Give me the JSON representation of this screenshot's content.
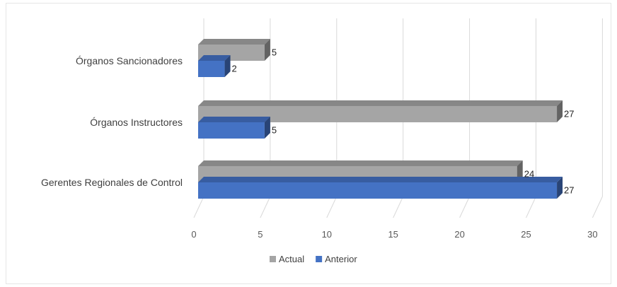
{
  "chart_data": {
    "type": "bar",
    "orientation": "horizontal",
    "style": "3d",
    "categories": [
      "Órganos Sancionadores",
      "Órganos Instructores",
      "Gerentes Regionales de Control"
    ],
    "series": [
      {
        "name": "Actual",
        "values": [
          5,
          27,
          24
        ],
        "color": "#a5a5a5"
      },
      {
        "name": "Anterior",
        "values": [
          2,
          5,
          27
        ],
        "color": "#4472c4"
      }
    ],
    "xlim": [
      0,
      30
    ],
    "xticks": [
      "0",
      "5",
      "10",
      "15",
      "20",
      "25",
      "30"
    ],
    "grid": true,
    "legend": "bottom"
  }
}
